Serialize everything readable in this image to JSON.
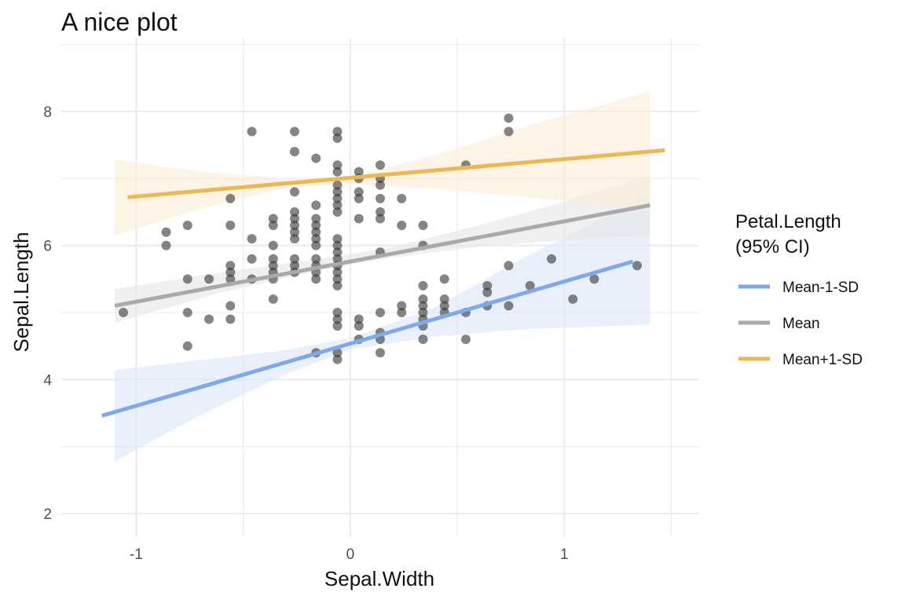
{
  "chart_data": {
    "type": "scatter",
    "title": "A nice plot",
    "xlabel": "Sepal.Width",
    "ylabel": "Sepal.Length",
    "xlim": [
      -1.35,
      1.63
    ],
    "ylim": [
      1.65,
      9.1
    ],
    "x_ticks": [
      -1,
      0,
      1
    ],
    "x_tick_labels": [
      "-1",
      "0",
      "1"
    ],
    "y_ticks": [
      2,
      4,
      6,
      8
    ],
    "y_tick_labels": [
      "2",
      "4",
      "6",
      "8"
    ],
    "grid": true,
    "legend": {
      "title_lines": [
        "Petal.Length",
        "(95% CI)"
      ],
      "placement": "right"
    },
    "points": [
      [
        -0.06,
        7.7
      ],
      [
        -0.06,
        7.6
      ],
      [
        -0.26,
        7.7
      ],
      [
        -0.46,
        7.7
      ],
      [
        0.74,
        7.9
      ],
      [
        0.74,
        7.7
      ],
      [
        -0.26,
        7.4
      ],
      [
        -0.16,
        7.3
      ],
      [
        -0.06,
        7.2
      ],
      [
        -0.06,
        7.1
      ],
      [
        0.14,
        7.2
      ],
      [
        0.14,
        6.9
      ],
      [
        0.14,
        7.0
      ],
      [
        0.04,
        7.1
      ],
      [
        0.54,
        7.2
      ],
      [
        0.04,
        7.0
      ],
      [
        -0.06,
        6.9
      ],
      [
        -0.06,
        6.8
      ],
      [
        -0.06,
        6.7
      ],
      [
        -0.06,
        6.6
      ],
      [
        -0.06,
        6.5
      ],
      [
        0.04,
        6.7
      ],
      [
        0.04,
        6.8
      ],
      [
        0.24,
        6.7
      ],
      [
        0.14,
        6.7
      ],
      [
        -0.26,
        6.8
      ],
      [
        -0.56,
        6.7
      ],
      [
        -0.16,
        6.6
      ],
      [
        -0.16,
        6.4
      ],
      [
        -0.16,
        6.3
      ],
      [
        -0.16,
        6.2
      ],
      [
        -0.16,
        6.1
      ],
      [
        -0.16,
        6.0
      ],
      [
        -0.26,
        6.5
      ],
      [
        -0.26,
        6.4
      ],
      [
        -0.26,
        6.3
      ],
      [
        -0.26,
        6.2
      ],
      [
        -0.26,
        6.1
      ],
      [
        -0.36,
        6.4
      ],
      [
        -0.36,
        6.3
      ],
      [
        -0.36,
        6.0
      ],
      [
        -0.06,
        6.1
      ],
      [
        -0.06,
        6.0
      ],
      [
        -0.06,
        5.9
      ],
      [
        -0.06,
        5.8
      ],
      [
        0.04,
        6.4
      ],
      [
        0.14,
        6.5
      ],
      [
        0.14,
        6.4
      ],
      [
        0.24,
        6.3
      ],
      [
        0.34,
        6.3
      ],
      [
        0.34,
        6.0
      ],
      [
        0.14,
        5.9
      ],
      [
        -0.46,
        6.1
      ],
      [
        -0.46,
        5.8
      ],
      [
        -0.46,
        5.5
      ],
      [
        -0.56,
        6.3
      ],
      [
        -0.56,
        5.7
      ],
      [
        -0.56,
        5.6
      ],
      [
        -0.56,
        5.5
      ],
      [
        -0.66,
        5.5
      ],
      [
        -0.76,
        6.3
      ],
      [
        -0.76,
        5.5
      ],
      [
        -0.86,
        6.2
      ],
      [
        -0.86,
        6.0
      ],
      [
        -1.06,
        5.0
      ],
      [
        -0.36,
        5.8
      ],
      [
        -0.36,
        5.7
      ],
      [
        -0.36,
        5.6
      ],
      [
        -0.36,
        5.5
      ],
      [
        -0.26,
        5.8
      ],
      [
        -0.26,
        5.7
      ],
      [
        -0.26,
        5.6
      ],
      [
        -0.16,
        5.8
      ],
      [
        -0.16,
        5.7
      ],
      [
        -0.16,
        5.6
      ],
      [
        -0.16,
        5.5
      ],
      [
        -0.06,
        5.7
      ],
      [
        -0.06,
        5.6
      ],
      [
        -0.06,
        5.5
      ],
      [
        -0.06,
        5.4
      ],
      [
        -0.36,
        5.2
      ],
      [
        -0.56,
        5.1
      ],
      [
        -0.56,
        4.9
      ],
      [
        -0.66,
        4.9
      ],
      [
        -0.76,
        5.0
      ],
      [
        -0.76,
        4.5
      ],
      [
        -0.16,
        4.4
      ],
      [
        -0.06,
        5.0
      ],
      [
        -0.06,
        4.9
      ],
      [
        -0.06,
        4.8
      ],
      [
        -0.06,
        4.4
      ],
      [
        -0.06,
        4.3
      ],
      [
        0.04,
        4.9
      ],
      [
        0.04,
        4.8
      ],
      [
        0.04,
        4.6
      ],
      [
        0.14,
        5.0
      ],
      [
        0.14,
        4.7
      ],
      [
        0.14,
        4.6
      ],
      [
        0.14,
        4.4
      ],
      [
        0.24,
        5.1
      ],
      [
        0.24,
        5.0
      ],
      [
        0.34,
        5.4
      ],
      [
        0.34,
        5.2
      ],
      [
        0.34,
        5.1
      ],
      [
        0.34,
        5.0
      ],
      [
        0.34,
        4.9
      ],
      [
        0.34,
        4.8
      ],
      [
        0.34,
        4.6
      ],
      [
        0.44,
        5.5
      ],
      [
        0.44,
        5.2
      ],
      [
        0.44,
        5.1
      ],
      [
        0.44,
        5.0
      ],
      [
        0.54,
        5.0
      ],
      [
        0.54,
        4.6
      ],
      [
        0.64,
        5.4
      ],
      [
        0.64,
        5.3
      ],
      [
        0.64,
        5.1
      ],
      [
        0.74,
        5.7
      ],
      [
        0.74,
        5.1
      ],
      [
        0.84,
        5.4
      ],
      [
        0.94,
        5.8
      ],
      [
        1.04,
        5.2
      ],
      [
        1.14,
        5.5
      ],
      [
        1.34,
        5.7
      ]
    ],
    "series": [
      {
        "name": "Mean-1-SD",
        "color": "#80a9eb",
        "fill": "#dbe6fa",
        "line": [
          [
            -1.16,
            3.46
          ],
          [
            1.32,
            5.76
          ]
        ],
        "ci_upper": [
          [
            -1.1,
            4.14
          ],
          [
            -0.7,
            4.29
          ],
          [
            -0.3,
            4.44
          ],
          [
            0.0,
            4.62
          ],
          [
            0.4,
            5.08
          ],
          [
            0.8,
            5.8
          ],
          [
            1.4,
            6.75
          ]
        ],
        "ci_lower": [
          [
            -1.1,
            2.78
          ],
          [
            -0.7,
            3.47
          ],
          [
            -0.3,
            4.08
          ],
          [
            0.0,
            4.45
          ],
          [
            0.4,
            4.64
          ],
          [
            0.8,
            4.75
          ],
          [
            1.4,
            4.82
          ]
        ]
      },
      {
        "name": "Mean",
        "color": "#aaaaaa",
        "fill": "#e6e6e6",
        "line": [
          [
            -1.1,
            5.1
          ],
          [
            1.4,
            6.6
          ]
        ],
        "ci_upper": [
          [
            -1.1,
            5.35
          ],
          [
            -0.6,
            5.6
          ],
          [
            -0.1,
            5.82
          ],
          [
            0.2,
            5.98
          ],
          [
            0.6,
            6.3
          ],
          [
            1.0,
            6.65
          ],
          [
            1.4,
            7.05
          ]
        ],
        "ci_lower": [
          [
            -1.1,
            4.85
          ],
          [
            -0.6,
            5.3
          ],
          [
            -0.1,
            5.66
          ],
          [
            0.2,
            5.82
          ],
          [
            0.6,
            5.98
          ],
          [
            1.0,
            6.08
          ],
          [
            1.4,
            6.15
          ]
        ]
      },
      {
        "name": "Mean+1-SD",
        "color": "#e8b956",
        "fill": "#fbecd3",
        "line": [
          [
            -1.04,
            6.72
          ],
          [
            1.47,
            7.42
          ]
        ],
        "ci_upper": [
          [
            -1.1,
            7.28
          ],
          [
            -0.7,
            7.1
          ],
          [
            -0.3,
            7.0
          ],
          [
            0.0,
            7.02
          ],
          [
            0.4,
            7.35
          ],
          [
            0.9,
            7.85
          ],
          [
            1.4,
            8.3
          ]
        ],
        "ci_lower": [
          [
            -1.1,
            6.15
          ],
          [
            -0.7,
            6.55
          ],
          [
            -0.3,
            6.86
          ],
          [
            0.0,
            6.92
          ],
          [
            0.4,
            6.85
          ],
          [
            0.9,
            6.7
          ],
          [
            1.4,
            6.55
          ]
        ]
      }
    ]
  }
}
